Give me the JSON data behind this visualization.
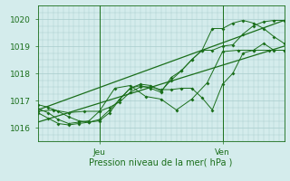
{
  "xlabel": "Pression niveau de la mer( hPa )",
  "ylim": [
    1015.5,
    1020.5
  ],
  "xlim": [
    0,
    48
  ],
  "yticks": [
    1016,
    1017,
    1018,
    1019,
    1020
  ],
  "xticks_pos": [
    12,
    36
  ],
  "xticks_labels": [
    "Jeu",
    "Ven"
  ],
  "bg_color": "#d4ecec",
  "grid_color": "#a8cccc",
  "line_color": "#1a6e1a",
  "line1_x": [
    0,
    48
  ],
  "line1_y": [
    1016.2,
    1019.0
  ],
  "line2_x": [
    0,
    48
  ],
  "line2_y": [
    1016.65,
    1019.95
  ],
  "zigzag1_x": [
    0,
    2,
    4,
    6,
    8,
    10,
    12,
    14,
    16,
    18,
    20,
    22,
    24,
    26,
    28,
    30,
    32,
    34,
    36,
    38,
    40,
    42,
    44,
    46,
    48
  ],
  "zigzag1_y": [
    1016.7,
    1016.55,
    1016.3,
    1016.15,
    1016.2,
    1016.25,
    1016.6,
    1016.75,
    1016.95,
    1017.3,
    1017.5,
    1017.5,
    1017.4,
    1017.4,
    1017.45,
    1017.45,
    1017.1,
    1016.65,
    1017.6,
    1018.0,
    1018.75,
    1018.85,
    1019.1,
    1018.85,
    1018.85
  ],
  "zigzag2_x": [
    0,
    2,
    4,
    6,
    8,
    10,
    12,
    14,
    16,
    18,
    20,
    22,
    24,
    26,
    28,
    30,
    32,
    34,
    36,
    38,
    40,
    42,
    44,
    46,
    48
  ],
  "zigzag2_y": [
    1016.55,
    1016.35,
    1016.15,
    1016.1,
    1016.15,
    1016.2,
    1016.3,
    1016.65,
    1017.05,
    1017.45,
    1017.6,
    1017.55,
    1017.35,
    1017.75,
    1018.1,
    1018.5,
    1018.85,
    1019.65,
    1019.65,
    1019.85,
    1019.95,
    1019.85,
    1019.65,
    1019.35,
    1019.1
  ],
  "zigzag3_x": [
    0,
    2,
    4,
    6,
    8,
    10,
    12,
    14,
    16,
    18,
    20,
    22,
    24,
    26,
    28,
    30,
    32,
    34,
    36,
    38,
    40,
    42,
    44,
    46,
    48
  ],
  "zigzag3_y": [
    1016.85,
    1016.75,
    1016.6,
    1016.4,
    1016.25,
    1016.2,
    1016.25,
    1016.55,
    1017.05,
    1017.45,
    1017.55,
    1017.45,
    1017.3,
    1017.85,
    1018.1,
    1018.5,
    1018.85,
    1018.85,
    1019.0,
    1019.05,
    1019.45,
    1019.75,
    1019.9,
    1019.95,
    1019.95
  ],
  "zigzag4_x": [
    0,
    3,
    6,
    9,
    12,
    15,
    18,
    21,
    24,
    27,
    30,
    33,
    36,
    39,
    42,
    45,
    48
  ],
  "zigzag4_y": [
    1016.6,
    1016.65,
    1016.55,
    1016.6,
    1016.6,
    1017.45,
    1017.55,
    1017.15,
    1017.05,
    1016.65,
    1017.05,
    1017.65,
    1018.8,
    1018.85,
    1018.85,
    1018.85,
    1018.85
  ],
  "vline_x": [
    12,
    36
  ]
}
